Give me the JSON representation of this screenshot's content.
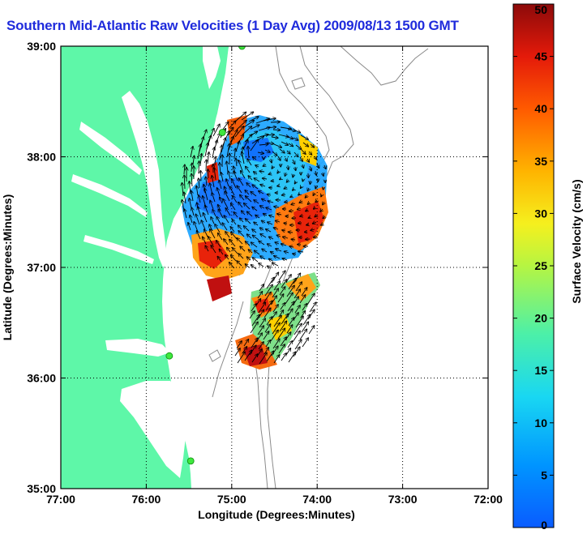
{
  "title": "Southern Mid-Atlantic Raw Velocities (1 Day Avg) 2009/08/13 1500 GMT",
  "map": {
    "xlabel": "Longitude (Degrees:Minutes)",
    "ylabel": "Latitude (Degrees:Minutes)",
    "x_ticks": [
      "77:00",
      "76:00",
      "75:00",
      "74:00",
      "73:00",
      "72:00"
    ],
    "y_ticks": [
      "39:00",
      "38:00",
      "37:00",
      "36:00",
      "35:00"
    ],
    "lon_range": [
      -77,
      -72
    ],
    "lat_range": [
      35,
      39
    ],
    "grid": true,
    "land_color": "#5ef7a8",
    "shelf_contour_color": "#8a8a8a"
  },
  "colorbar": {
    "label": "Surface Velocity (cm/s)",
    "range": [
      0,
      50
    ],
    "ticks": [
      "0",
      "5",
      "10",
      "15",
      "20",
      "25",
      "30",
      "35",
      "40",
      "45",
      "50"
    ],
    "colormap": "jet"
  },
  "stations": [
    {
      "lon": -74.88,
      "lat": 39.0
    },
    {
      "lon": -75.11,
      "lat": 38.22
    },
    {
      "lon": -75.73,
      "lat": 36.2
    },
    {
      "lon": -75.48,
      "lat": 35.25
    }
  ]
}
